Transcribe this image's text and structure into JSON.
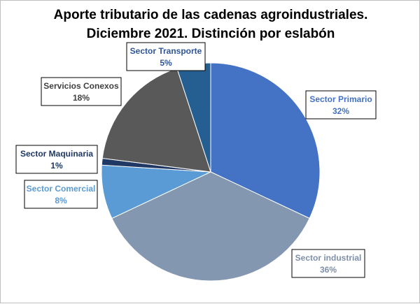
{
  "chart_data": {
    "type": "pie",
    "title": "Aporte tributario de las cadenas agroindustriales.",
    "subtitle": "Diciembre 2021. Distinción por eslabón",
    "start_angle_deg": 0,
    "direction": "clockwise",
    "slices": [
      {
        "name": "Sector Primario",
        "value": 32,
        "label": "32%",
        "color": "#4472c4",
        "label_color": "#4472c4"
      },
      {
        "name": "Sector industrial",
        "value": 36,
        "label": "36%",
        "color": "#8497b0",
        "label_color": "#7f8fa9"
      },
      {
        "name": "Sector Comercial",
        "value": 8,
        "label": "8%",
        "color": "#5b9bd5",
        "label_color": "#5b9bd5"
      },
      {
        "name": "Sector Maquinaria",
        "value": 1,
        "label": "1%",
        "color": "#203864",
        "label_color": "#203864"
      },
      {
        "name": "Servicios Conexos",
        "value": 18,
        "label": "18%",
        "color": "#595959",
        "label_color": "#404040"
      },
      {
        "name": "Sector Transporte",
        "value": 5,
        "label": "5%",
        "color": "#255e91",
        "label_color": "#2f5597"
      }
    ]
  }
}
